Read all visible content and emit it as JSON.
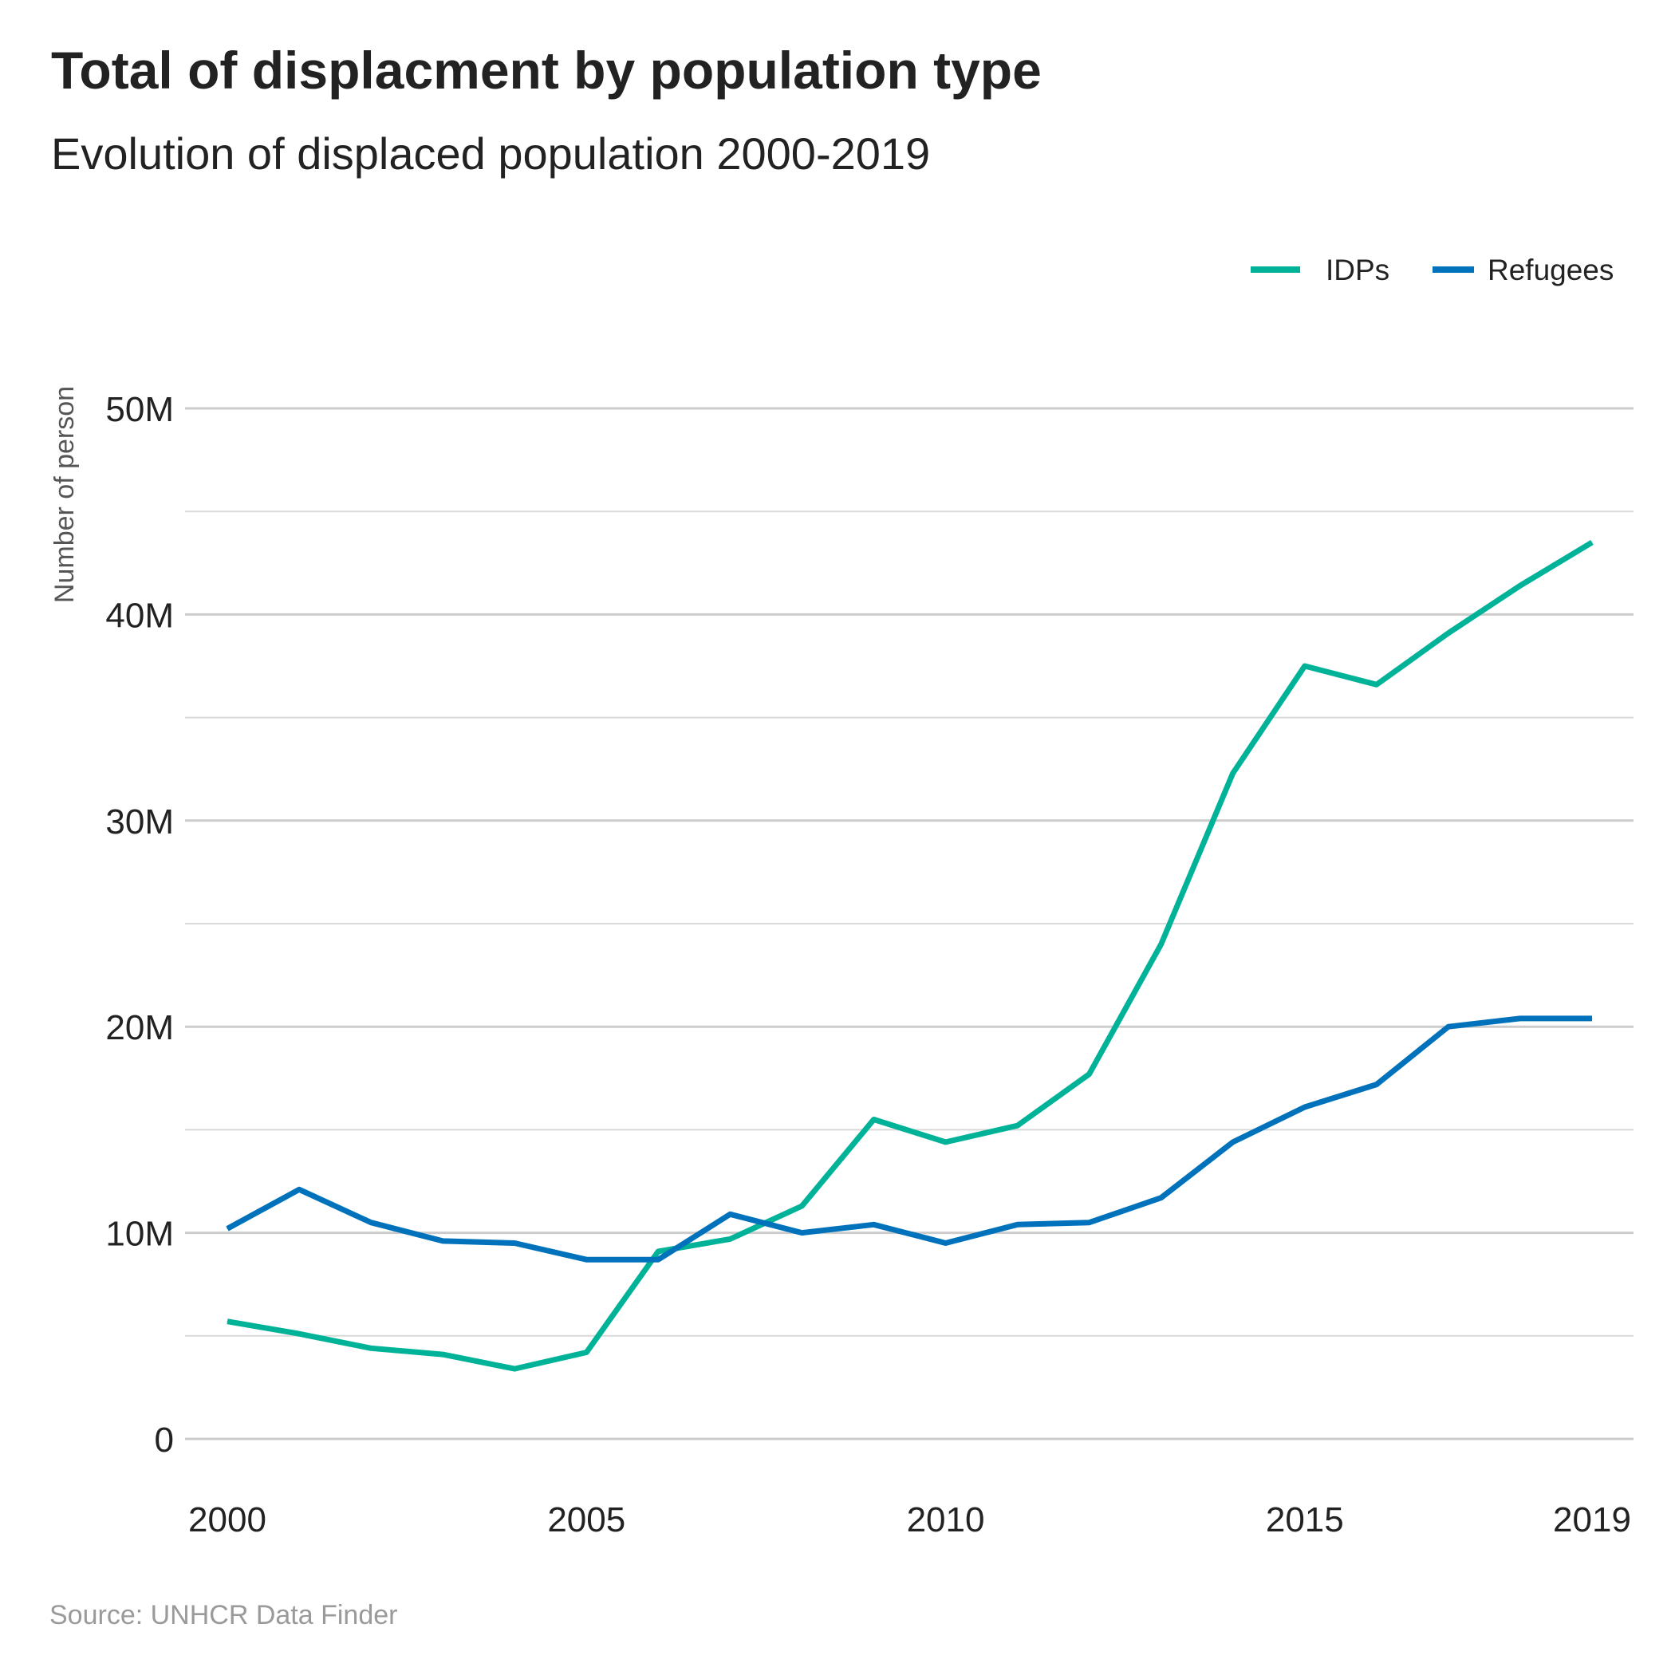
{
  "title": "Total of displacment by population type",
  "subtitle": "Evolution of displaced population 2000-2019",
  "source": "Source: UNHCR Data Finder",
  "colors": {
    "idps": "#00B398",
    "refugees": "#0072BC",
    "grid_major": "#cccccc",
    "grid_minor": "#d9d9d9"
  },
  "chart_data": {
    "type": "line",
    "title": "Total of displacment by population type",
    "subtitle": "Evolution of displaced population 2000-2019",
    "ylabel": "Number of person",
    "xlabel": "",
    "x": [
      2000,
      2001,
      2002,
      2003,
      2004,
      2005,
      2006,
      2007,
      2008,
      2009,
      2010,
      2011,
      2012,
      2013,
      2014,
      2015,
      2016,
      2017,
      2018,
      2019
    ],
    "series": [
      {
        "name": "IDPs",
        "color": "#00B398",
        "values": [
          5.7,
          5.1,
          4.4,
          4.1,
          3.4,
          4.2,
          9.1,
          9.7,
          11.3,
          15.5,
          14.4,
          15.2,
          17.7,
          24.0,
          32.3,
          37.5,
          36.6,
          39.1,
          41.4,
          43.5
        ]
      },
      {
        "name": "Refugees",
        "color": "#0072BC",
        "values": [
          10.2,
          12.1,
          10.5,
          9.6,
          9.5,
          8.7,
          8.7,
          10.9,
          10.0,
          10.4,
          9.5,
          10.4,
          10.5,
          11.7,
          14.4,
          16.1,
          17.2,
          20.0,
          20.4,
          20.4
        ]
      }
    ],
    "ylim": [
      0,
      50
    ],
    "y_ticks": [
      0,
      10,
      20,
      30,
      40,
      50
    ],
    "y_tick_labels": [
      "0",
      "10M",
      "20M",
      "30M",
      "40M",
      "50M"
    ],
    "y_minor_ticks": [
      5,
      15,
      25,
      35,
      45
    ],
    "xlim": [
      2000,
      2019
    ],
    "x_ticks": [
      2000,
      2005,
      2010,
      2015,
      2019
    ],
    "x_tick_labels": [
      "2000",
      "2005",
      "2010",
      "2015",
      "2019"
    ],
    "grid": true,
    "legend": "top-right"
  }
}
